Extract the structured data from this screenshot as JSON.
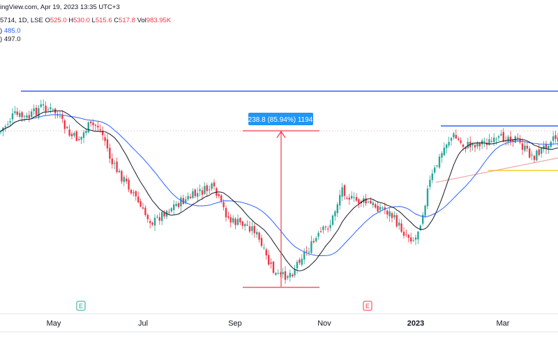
{
  "header": {
    "line1": "ingView.com, Apr 19, 2023 13:35 UTC+3",
    "line2_prefix": "5714, 1D, LSE",
    "o_label": "O",
    "o_value": "525.0",
    "h_label": "H",
    "h_value": "530.0",
    "l_label": "L",
    "l_value": "515.6",
    "c_label": "C",
    "c_value": "517.8",
    "vol_label": "Vol",
    "vol_value": "983.95K",
    "ma1_suffix": ")",
    "ma1_value": "485.0",
    "ma2_suffix": ")",
    "ma2_value": "497.0"
  },
  "measure_label": "238.8 (85.94%) 1194",
  "colors": {
    "up": "#26a69a",
    "down": "#f23645",
    "ma_fast": "#131722",
    "ma_slow": "#2962ff",
    "resistance": "#2962ff",
    "support": "#f2d024",
    "trendline": "#f4a6a6",
    "measure": "#f23645",
    "measure_label_bg": "#2196f3",
    "event_marker": "#26a69a",
    "event_marker_2": "#f23645"
  },
  "chart_data": {
    "type": "candlestick",
    "title": "",
    "xlabel": "",
    "ylabel": "",
    "x_labels": [
      "May",
      "Jul",
      "Sep",
      "Nov",
      "2023",
      "Mar"
    ],
    "event_markers": [
      "E",
      "E"
    ],
    "ylim": [
      240,
      640
    ],
    "ohlc_approx": [
      {
        "date": "Apr 2022",
        "close": 580
      },
      {
        "date": "May 2022",
        "close": 560
      },
      {
        "date": "Jun 2022",
        "close": 470
      },
      {
        "date": "Jul 2022",
        "close": 420
      },
      {
        "date": "Aug 2022",
        "close": 450
      },
      {
        "date": "Sep 2022",
        "close": 400
      },
      {
        "date": "Oct 2022",
        "close": 270
      },
      {
        "date": "Nov 2022",
        "close": 420
      },
      {
        "date": "Dec 2022",
        "close": 420
      },
      {
        "date": "Jan 2023",
        "close": 545
      },
      {
        "date": "Feb 2023",
        "close": 555
      },
      {
        "date": "Mar 2023",
        "close": 530
      },
      {
        "date": "Apr 2023",
        "close": 518
      }
    ],
    "levels": {
      "resistance_top": 615,
      "resistance_recent": 570,
      "support_recent": 522,
      "measure_low": 278,
      "measure_high": 517
    }
  }
}
